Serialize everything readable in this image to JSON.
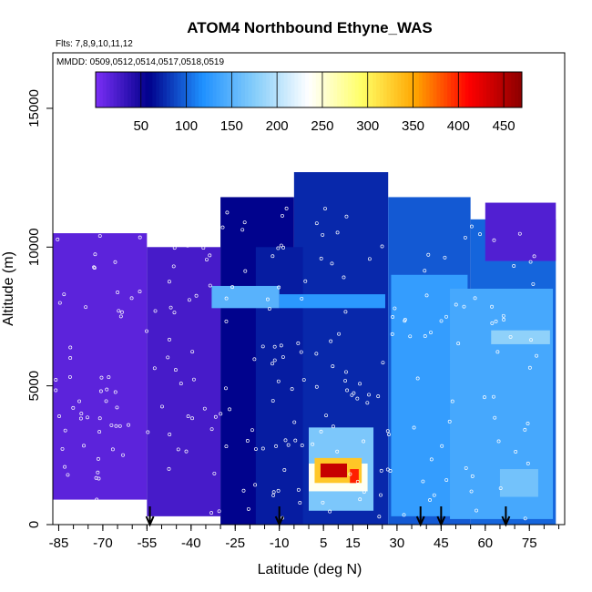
{
  "chart_data": {
    "type": "heatmap",
    "title": "ATOM4 Northbound Ethyne_WAS",
    "subtitle_flights": "Flts: 7,8,9,10,11,12",
    "subtitle_dates": "MMDD: 0509,0512,0514,0517,0518,0519",
    "xlabel": "Latitude (deg N)",
    "ylabel": "Altitude (m)",
    "xlim": [
      -87,
      87
    ],
    "ylim": [
      0,
      17000
    ],
    "x_ticks": [
      -85,
      -70,
      -55,
      -40,
      -25,
      -10,
      5,
      15,
      30,
      45,
      60,
      75
    ],
    "y_ticks": [
      0,
      5000,
      10000,
      15000
    ],
    "x_tick_labels": [
      "-85",
      "-70",
      "-55",
      "-40",
      "-25",
      "-10",
      "5",
      "15",
      "30",
      "45",
      "60",
      "75"
    ],
    "y_tick_labels": [
      "0",
      "5000",
      "10000",
      "15000"
    ],
    "colorbar": {
      "range": [
        0,
        470
      ],
      "ticks": [
        50,
        100,
        150,
        200,
        250,
        300,
        350,
        400,
        450
      ],
      "tick_labels": [
        "50",
        "100",
        "150",
        "200",
        "250",
        "300",
        "350",
        "400",
        "450"
      ],
      "colors": [
        "#7b2ff7",
        "#00008b",
        "#1e90ff",
        "#87cefa",
        "#ffffff",
        "#ffff66",
        "#ffa500",
        "#ff0000",
        "#8b0000"
      ]
    },
    "arrow_latitudes": [
      -54,
      -10,
      38,
      45,
      67
    ],
    "regions": [
      {
        "lat": [
          -87,
          -55
        ],
        "alt": [
          900,
          10500
        ],
        "value": 15
      },
      {
        "lat": [
          -55,
          -30
        ],
        "alt": [
          300,
          10000
        ],
        "value": 25
      },
      {
        "lat": [
          -30,
          -5
        ],
        "alt": [
          0,
          11800
        ],
        "value": 60
      },
      {
        "lat": [
          -5,
          27
        ],
        "alt": [
          0,
          12700
        ],
        "value": 75
      },
      {
        "lat": [
          27,
          55
        ],
        "alt": [
          0,
          11800
        ],
        "value": 95
      },
      {
        "lat": [
          55,
          84
        ],
        "alt": [
          0,
          11000
        ],
        "value": 100
      },
      {
        "lat": [
          60,
          84
        ],
        "alt": [
          9500,
          11600
        ],
        "value": 20
      },
      {
        "lat": [
          -18,
          -2
        ],
        "alt": [
          0,
          10000
        ],
        "value": 70
      },
      {
        "lat": [
          28,
          54
        ],
        "alt": [
          300,
          9000
        ],
        "value": 130
      },
      {
        "lat": [
          48,
          83
        ],
        "alt": [
          200,
          8500
        ],
        "value": 140
      },
      {
        "lat": [
          -33,
          -10
        ],
        "alt": [
          7800,
          8600
        ],
        "value": 150
      },
      {
        "lat": [
          -10,
          26
        ],
        "alt": [
          7800,
          8300
        ],
        "value": 125
      },
      {
        "lat": [
          62,
          82
        ],
        "alt": [
          6500,
          7000
        ],
        "value": 180
      },
      {
        "lat": [
          65,
          78
        ],
        "alt": [
          1000,
          2000
        ],
        "value": 165
      },
      {
        "lat": [
          0,
          22
        ],
        "alt": [
          500,
          3500
        ],
        "value": 170
      },
      {
        "lat": [
          0,
          20
        ],
        "alt": [
          1200,
          2200
        ],
        "value": 240
      },
      {
        "lat": [
          2,
          18
        ],
        "alt": [
          1500,
          2400
        ],
        "value": 330
      },
      {
        "lat": [
          4,
          13
        ],
        "alt": [
          1700,
          2200
        ],
        "value": 440
      },
      {
        "lat": [
          14,
          17
        ],
        "alt": [
          1500,
          2000
        ],
        "value": 400
      }
    ]
  }
}
